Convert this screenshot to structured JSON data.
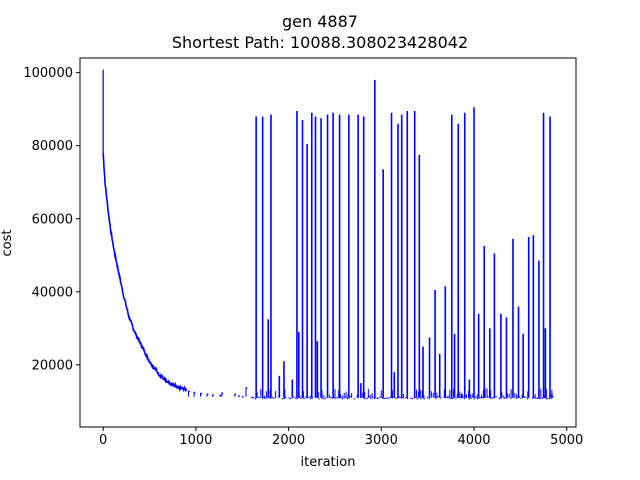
{
  "chart_data": {
    "type": "line",
    "title": "gen 4887",
    "subtitle": "Shortest Path: 10088.308023428042",
    "xlabel": "iteration",
    "ylabel": "cost",
    "xlim": [
      -250,
      5100
    ],
    "ylim": [
      3000,
      104000
    ],
    "xticks": [
      0,
      1000,
      2000,
      3000,
      4000,
      5000
    ],
    "xtick_labels": [
      "0",
      "1000",
      "2000",
      "3000",
      "4000",
      "5000"
    ],
    "yticks": [
      20000,
      40000,
      60000,
      80000,
      100000
    ],
    "ytick_labels": [
      "20000",
      "40000",
      "60000",
      "80000",
      "100000"
    ],
    "grid": false,
    "series": [
      {
        "color": "#0000ff",
        "baseline": 11000,
        "initial_max": 100800,
        "decay_curve": [
          [
            0,
            78000
          ],
          [
            20,
            70000
          ],
          [
            50,
            63000
          ],
          [
            80,
            57000
          ],
          [
            120,
            51000
          ],
          [
            170,
            45000
          ],
          [
            220,
            39000
          ],
          [
            280,
            33000
          ],
          [
            340,
            29000
          ],
          [
            420,
            25000
          ],
          [
            500,
            21000
          ],
          [
            600,
            17500
          ],
          [
            700,
            15000
          ],
          [
            800,
            14000
          ],
          [
            900,
            13200
          ],
          [
            1000,
            12600
          ],
          [
            1100,
            12300
          ],
          [
            1200,
            12000
          ],
          [
            1300,
            11800
          ]
        ],
        "spikes": [
          [
            1650,
            88000
          ],
          [
            1720,
            88000
          ],
          [
            1780,
            32500
          ],
          [
            1810,
            88500
          ],
          [
            1900,
            17000
          ],
          [
            1950,
            21000
          ],
          [
            2040,
            16000
          ],
          [
            2090,
            89500
          ],
          [
            2110,
            29000
          ],
          [
            2150,
            87000
          ],
          [
            2200,
            80500
          ],
          [
            2250,
            89000
          ],
          [
            2290,
            88000
          ],
          [
            2310,
            26500
          ],
          [
            2350,
            87500
          ],
          [
            2420,
            88500
          ],
          [
            2480,
            89000
          ],
          [
            2550,
            88500
          ],
          [
            2650,
            88500
          ],
          [
            2750,
            88500
          ],
          [
            2780,
            15000
          ],
          [
            2810,
            88000
          ],
          [
            2930,
            98000
          ],
          [
            3020,
            73500
          ],
          [
            3110,
            89000
          ],
          [
            3140,
            18000
          ],
          [
            3180,
            86000
          ],
          [
            3220,
            88500
          ],
          [
            3280,
            89500
          ],
          [
            3360,
            89500
          ],
          [
            3410,
            77500
          ],
          [
            3450,
            25000
          ],
          [
            3520,
            27500
          ],
          [
            3580,
            40500
          ],
          [
            3630,
            23000
          ],
          [
            3690,
            41500
          ],
          [
            3760,
            88500
          ],
          [
            3790,
            28500
          ],
          [
            3830,
            86000
          ],
          [
            3870,
            12000
          ],
          [
            3900,
            89000
          ],
          [
            3950,
            16000
          ],
          [
            4000,
            90500
          ],
          [
            4050,
            34000
          ],
          [
            4110,
            52500
          ],
          [
            4170,
            30000
          ],
          [
            4220,
            50500
          ],
          [
            4290,
            34000
          ],
          [
            4350,
            33000
          ],
          [
            4420,
            54500
          ],
          [
            4480,
            36000
          ],
          [
            4530,
            28500
          ],
          [
            4590,
            55000
          ],
          [
            4640,
            55500
          ],
          [
            4700,
            48500
          ],
          [
            4750,
            89000
          ],
          [
            4770,
            30000
          ],
          [
            4820,
            88000
          ],
          [
            4840,
            12000
          ]
        ]
      }
    ]
  }
}
